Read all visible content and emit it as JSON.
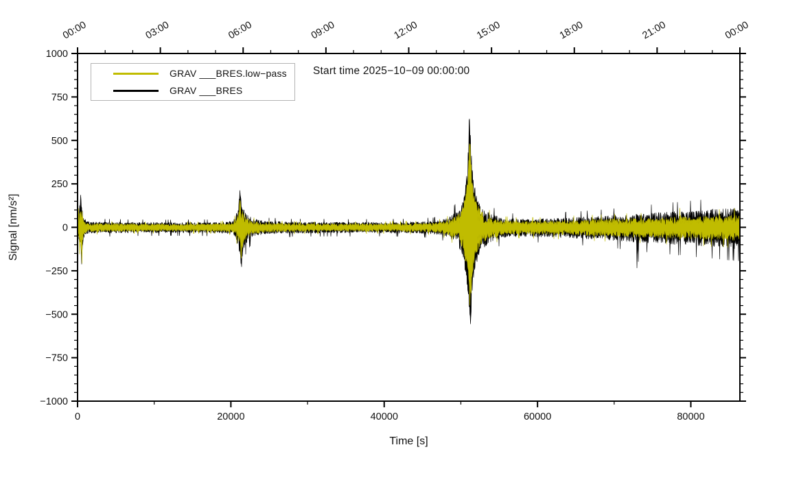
{
  "chart_data": {
    "type": "line",
    "title": "Start time 2025−10−09 00:00:00",
    "xlabel": "Time [s]",
    "ylabel": "Signal [nm/s²]",
    "xlim": [
      0,
      86400
    ],
    "ylim": [
      -1000,
      1000
    ],
    "grid": false,
    "legend_position": "upper-left",
    "x_axis_bottom": {
      "major_ticks": [
        0,
        20000,
        40000,
        60000,
        80000
      ],
      "labels": [
        "0",
        "20000",
        "40000",
        "60000",
        "80000"
      ],
      "minor_step": 10000
    },
    "x_axis_top": {
      "major_ticks_seconds": [
        0,
        10800,
        21600,
        32400,
        43200,
        54000,
        64800,
        75600,
        86400
      ],
      "labels": [
        "00:00",
        "03:00",
        "06:00",
        "09:00",
        "12:00",
        "15:00",
        "18:00",
        "21:00",
        "00:00"
      ],
      "minor_step": 3600,
      "label_rotation_deg": -30
    },
    "y_axis": {
      "major_ticks": [
        1000,
        750,
        500,
        250,
        0,
        -250,
        -500,
        -750,
        -1000
      ],
      "labels": [
        "1000",
        "750",
        "500",
        "250",
        "0",
        "−250",
        "−500",
        "−750",
        "−1000"
      ],
      "minor_step": 50
    },
    "legend": {
      "entries": [
        {
          "label": "GRAV ___BRES.low−pass",
          "color": "#c0bc00"
        },
        {
          "label": "GRAV ___BRES",
          "color": "#000000"
        }
      ]
    },
    "series": [
      {
        "name": "GRAV ___BRES",
        "color": "#000000",
        "description": "raw signal; noise envelope [t_seconds, +amplitude, -amplitude] in nm/s^2",
        "envelope": [
          [
            0,
            55,
            60
          ],
          [
            250,
            110,
            120
          ],
          [
            430,
            195,
            120
          ],
          [
            520,
            150,
            228
          ],
          [
            650,
            80,
            110
          ],
          [
            900,
            45,
            50
          ],
          [
            1500,
            30,
            33
          ],
          [
            6000,
            27,
            30
          ],
          [
            12000,
            26,
            29
          ],
          [
            18000,
            27,
            30
          ],
          [
            20300,
            34,
            36
          ],
          [
            20700,
            70,
            65
          ],
          [
            21000,
            130,
            110
          ],
          [
            21200,
            240,
            150
          ],
          [
            21350,
            160,
            255
          ],
          [
            21600,
            110,
            120
          ],
          [
            22100,
            70,
            78
          ],
          [
            23000,
            45,
            50
          ],
          [
            24500,
            33,
            36
          ],
          [
            28000,
            29,
            32
          ],
          [
            34000,
            28,
            31
          ],
          [
            40000,
            28,
            31
          ],
          [
            44000,
            30,
            33
          ],
          [
            46500,
            33,
            36
          ],
          [
            48000,
            45,
            48
          ],
          [
            49000,
            70,
            75
          ],
          [
            49800,
            100,
            110
          ],
          [
            50300,
            150,
            165
          ],
          [
            50700,
            260,
            280
          ],
          [
            51000,
            480,
            380
          ],
          [
            51120,
            670,
            520
          ],
          [
            51260,
            540,
            630
          ],
          [
            51450,
            340,
            360
          ],
          [
            51750,
            240,
            255
          ],
          [
            52300,
            150,
            160
          ],
          [
            53000,
            100,
            110
          ],
          [
            54000,
            70,
            78
          ],
          [
            55500,
            52,
            58
          ],
          [
            57500,
            45,
            50
          ],
          [
            60000,
            46,
            52
          ],
          [
            63000,
            50,
            56
          ],
          [
            66000,
            56,
            62
          ],
          [
            69000,
            62,
            68
          ],
          [
            72800,
            70,
            80
          ],
          [
            73000,
            92,
            150
          ],
          [
            73300,
            72,
            82
          ],
          [
            76000,
            80,
            88
          ],
          [
            79000,
            88,
            96
          ],
          [
            82000,
            96,
            104
          ],
          [
            84500,
            102,
            110
          ],
          [
            86400,
            108,
            116
          ]
        ]
      },
      {
        "name": "GRAV ___BRES.low−pass",
        "color": "#c0bc00",
        "description": "low-pass filtered signal; noise envelope [t_seconds, +amplitude, -amplitude] in nm/s^2",
        "envelope": [
          [
            0,
            42,
            46
          ],
          [
            250,
            85,
            92
          ],
          [
            430,
            145,
            95
          ],
          [
            520,
            115,
            160
          ],
          [
            650,
            60,
            82
          ],
          [
            900,
            34,
            38
          ],
          [
            1500,
            22,
            25
          ],
          [
            6000,
            20,
            22
          ],
          [
            12000,
            19,
            21
          ],
          [
            18000,
            20,
            22
          ],
          [
            20300,
            26,
            27
          ],
          [
            20700,
            52,
            48
          ],
          [
            21000,
            95,
            82
          ],
          [
            21200,
            165,
            110
          ],
          [
            21350,
            115,
            175
          ],
          [
            21600,
            80,
            88
          ],
          [
            22100,
            52,
            58
          ],
          [
            23000,
            33,
            37
          ],
          [
            24500,
            24,
            27
          ],
          [
            28000,
            21,
            23
          ],
          [
            34000,
            20,
            22
          ],
          [
            40000,
            20,
            22
          ],
          [
            44000,
            22,
            24
          ],
          [
            46500,
            24,
            27
          ],
          [
            48000,
            33,
            36
          ],
          [
            49000,
            52,
            56
          ],
          [
            49800,
            75,
            82
          ],
          [
            50300,
            112,
            124
          ],
          [
            50700,
            200,
            215
          ],
          [
            51000,
            380,
            300
          ],
          [
            51120,
            520,
            410
          ],
          [
            51260,
            425,
            500
          ],
          [
            51450,
            265,
            280
          ],
          [
            51750,
            185,
            195
          ],
          [
            52300,
            115,
            122
          ],
          [
            53000,
            75,
            82
          ],
          [
            54000,
            52,
            58
          ],
          [
            55500,
            38,
            43
          ],
          [
            57500,
            33,
            37
          ],
          [
            60000,
            34,
            38
          ],
          [
            63000,
            37,
            41
          ],
          [
            66000,
            41,
            45
          ],
          [
            69000,
            45,
            49
          ],
          [
            72500,
            48,
            53
          ],
          [
            76000,
            52,
            57
          ],
          [
            78400,
            56,
            60
          ],
          [
            78550,
            160,
            70
          ],
          [
            78700,
            57,
            61
          ],
          [
            82000,
            60,
            65
          ],
          [
            84500,
            63,
            68
          ],
          [
            86400,
            66,
            71
          ]
        ]
      }
    ],
    "events": [
      {
        "time_s": 500,
        "peak_pos": 200,
        "peak_neg": -230
      },
      {
        "time_s": 21300,
        "peak_pos": 240,
        "peak_neg": -255
      },
      {
        "time_s": 51150,
        "peak_pos": 670,
        "peak_neg": -630
      }
    ]
  }
}
